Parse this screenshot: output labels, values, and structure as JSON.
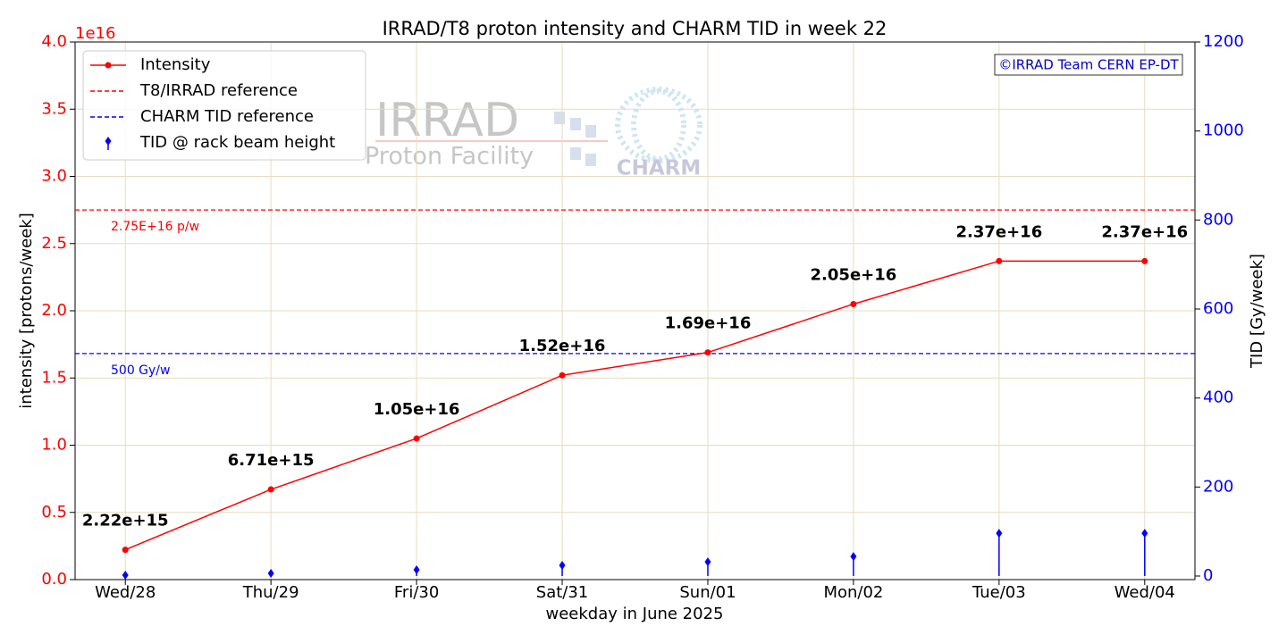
{
  "chart_data": {
    "type": "line",
    "title": "IRRAD/T8 proton intensity and CHARM TID in week 22",
    "xlabel": "weekday in June 2025",
    "ylabel": "intensity [protons/week]",
    "y2label": "TID [Gy/week]",
    "y_offset_label": "1e16",
    "copyright": "©IRRAD Team CERN EP-DT",
    "watermark": [
      "IRRAD",
      "Proton Facility",
      "CHARM"
    ],
    "categories": [
      "Wed/28",
      "Thu/29",
      "Fri/30",
      "Sat/31",
      "Sun/01",
      "Mon/02",
      "Tue/03",
      "Wed/04"
    ],
    "series": [
      {
        "name": "Intensity",
        "color": "#ff0000",
        "type": "line",
        "values": [
          0.222,
          0.671,
          1.05,
          1.52,
          1.69,
          2.05,
          2.37,
          2.37
        ],
        "value_labels": [
          "2.22e+15",
          "6.71e+15",
          "1.05e+16",
          "1.52e+16",
          "1.69e+16",
          "2.05e+16",
          "2.37e+16",
          "2.37e+16"
        ]
      },
      {
        "name": "TID @ rack beam height",
        "color": "#0000ff",
        "type": "stem",
        "axis": "y2",
        "values": [
          2,
          6,
          14,
          24,
          32,
          44,
          96,
          96
        ]
      }
    ],
    "reference_lines": [
      {
        "name": "T8/IRRAD reference",
        "value": 2.75,
        "label": "2.75E+16 p/w",
        "color": "#ff0000"
      },
      {
        "name": "CHARM TID reference",
        "value": 500,
        "axis": "y2",
        "label": "500 Gy/w",
        "color": "#0000ff"
      }
    ],
    "ylim": [
      0,
      4
    ],
    "yticks": [
      {
        "value": 0,
        "label": "0.0"
      },
      0.5,
      {
        "value": 1,
        "label": "1.0"
      },
      1.5,
      {
        "value": 2,
        "label": "2.0"
      },
      2.5,
      {
        "value": 3,
        "label": "3.0"
      },
      3.5,
      {
        "value": 4,
        "label": "4.0"
      }
    ],
    "y2lim": [
      -8,
      1200
    ],
    "y2ticks": [
      0,
      200,
      400,
      600,
      800,
      1000,
      1200
    ],
    "grid": true,
    "legend": "upper left"
  }
}
